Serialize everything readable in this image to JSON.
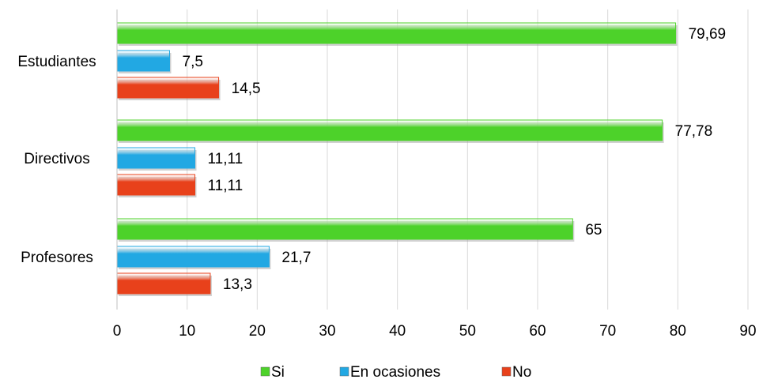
{
  "chart_data": {
    "type": "bar",
    "orientation": "horizontal",
    "categories": [
      "Estudiantes",
      "Directivos",
      "Profesores"
    ],
    "series": [
      {
        "name": "Si",
        "values": [
          79.69,
          77.78,
          65
        ],
        "labels": [
          "79,69",
          "77,78",
          "65"
        ],
        "color": "#4dd22a"
      },
      {
        "name": "En ocasiones",
        "values": [
          7.5,
          11.11,
          21.7
        ],
        "labels": [
          "7,5",
          "11,11",
          "21,7"
        ],
        "color": "#22a8e3"
      },
      {
        "name": "No",
        "values": [
          14.5,
          11.11,
          13.3
        ],
        "labels": [
          "14,5",
          "11,11",
          "13,3"
        ],
        "color": "#e8411b"
      }
    ],
    "xlim": [
      0,
      90
    ],
    "xticks": [
      0,
      10,
      20,
      30,
      40,
      50,
      60,
      70,
      80,
      90
    ],
    "xticklabels": [
      "0",
      "10",
      "20",
      "30",
      "40",
      "50",
      "60",
      "70",
      "80",
      "90"
    ],
    "grid": true,
    "legend": "bottom"
  }
}
